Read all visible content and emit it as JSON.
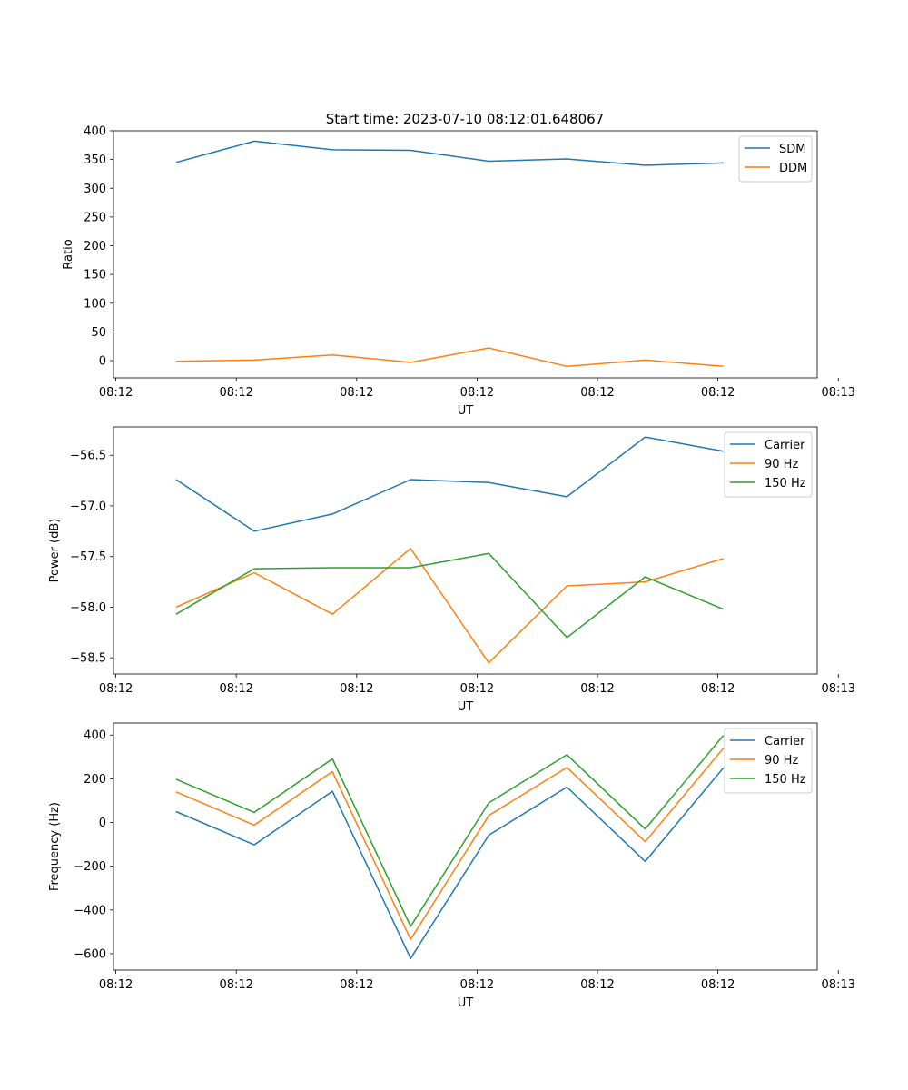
{
  "figure_title": "Start time: 2023-07-10 08:12:01.648067",
  "chart_data": [
    {
      "type": "line",
      "title": "Start time: 2023-07-10 08:12:01.648067",
      "xlabel": "UT",
      "ylabel": "Ratio",
      "legend_loc": "top-right",
      "grid": false,
      "x": [
        1,
        2,
        3,
        4,
        5,
        6,
        7,
        8
      ],
      "xlim": [
        0.2,
        9.2
      ],
      "xticks": [
        0.23,
        1.77,
        3.31,
        4.85,
        6.39,
        7.93,
        9.47
      ],
      "xtick_labels": [
        "08:12",
        "08:12",
        "08:12",
        "08:12",
        "08:12",
        "08:12",
        "08:13"
      ],
      "ylim": [
        -30,
        400
      ],
      "yticks": [
        0,
        50,
        100,
        150,
        200,
        250,
        300,
        350,
        400
      ],
      "ytick_labels": [
        "0",
        "50",
        "100",
        "150",
        "200",
        "250",
        "300",
        "350",
        "400"
      ],
      "series": [
        {
          "name": "SDM",
          "color": "#1f77b4",
          "values": [
            345,
            382,
            367,
            366,
            347,
            351,
            340,
            344
          ]
        },
        {
          "name": "DDM",
          "color": "#ff7f0e",
          "values": [
            -1,
            1,
            10,
            -3,
            22,
            -10,
            1,
            -10
          ]
        }
      ]
    },
    {
      "type": "line",
      "title": "",
      "xlabel": "UT",
      "ylabel": "Power (dB)",
      "legend_loc": "top-right",
      "grid": false,
      "x": [
        1,
        2,
        3,
        4,
        5,
        6,
        7,
        8
      ],
      "xlim": [
        0.2,
        9.2
      ],
      "xticks": [
        0.23,
        1.77,
        3.31,
        4.85,
        6.39,
        7.93,
        9.47
      ],
      "xtick_labels": [
        "08:12",
        "08:12",
        "08:12",
        "08:12",
        "08:12",
        "08:12",
        "08:13"
      ],
      "ylim": [
        -58.66,
        -56.22
      ],
      "yticks": [
        -58.5,
        -58.0,
        -57.5,
        -57.0,
        -56.5
      ],
      "ytick_labels": [
        "−58.5",
        "−58.0",
        "−57.5",
        "−57.0",
        "−56.5"
      ],
      "series": [
        {
          "name": "Carrier",
          "color": "#1f77b4",
          "values": [
            -56.74,
            -57.25,
            -57.08,
            -56.74,
            -56.77,
            -56.91,
            -56.32,
            -56.46
          ]
        },
        {
          "name": "90 Hz",
          "color": "#ff7f0e",
          "values": [
            -58.0,
            -57.66,
            -58.07,
            -57.42,
            -58.55,
            -57.79,
            -57.75,
            -57.52
          ]
        },
        {
          "name": "150 Hz",
          "color": "#2ca02c",
          "values": [
            -58.07,
            -57.62,
            -57.61,
            -57.61,
            -57.47,
            -58.3,
            -57.7,
            -58.02
          ]
        }
      ]
    },
    {
      "type": "line",
      "title": "",
      "xlabel": "UT",
      "ylabel": "Frequency (Hz)",
      "legend_loc": "top-right",
      "grid": false,
      "x": [
        1,
        2,
        3,
        4,
        5,
        6,
        7,
        8
      ],
      "xlim": [
        0.2,
        9.2
      ],
      "xticks": [
        0.23,
        1.77,
        3.31,
        4.85,
        6.39,
        7.93,
        9.47
      ],
      "xtick_labels": [
        "08:12",
        "08:12",
        "08:12",
        "08:12",
        "08:12",
        "08:12",
        "08:13"
      ],
      "ylim": [
        -675,
        455
      ],
      "yticks": [
        -600,
        -400,
        -200,
        0,
        200,
        400
      ],
      "ytick_labels": [
        "−600",
        "−400",
        "−200",
        "0",
        "200",
        "400"
      ],
      "series": [
        {
          "name": "Carrier",
          "color": "#1f77b4",
          "values": [
            50,
            -102,
            143,
            -622,
            -58,
            162,
            -178,
            250
          ]
        },
        {
          "name": "90 Hz",
          "color": "#ff7f0e",
          "values": [
            140,
            -12,
            233,
            -535,
            32,
            252,
            -88,
            340
          ]
        },
        {
          "name": "150 Hz",
          "color": "#2ca02c",
          "values": [
            198,
            46,
            291,
            -475,
            90,
            310,
            -30,
            398
          ]
        }
      ]
    }
  ]
}
